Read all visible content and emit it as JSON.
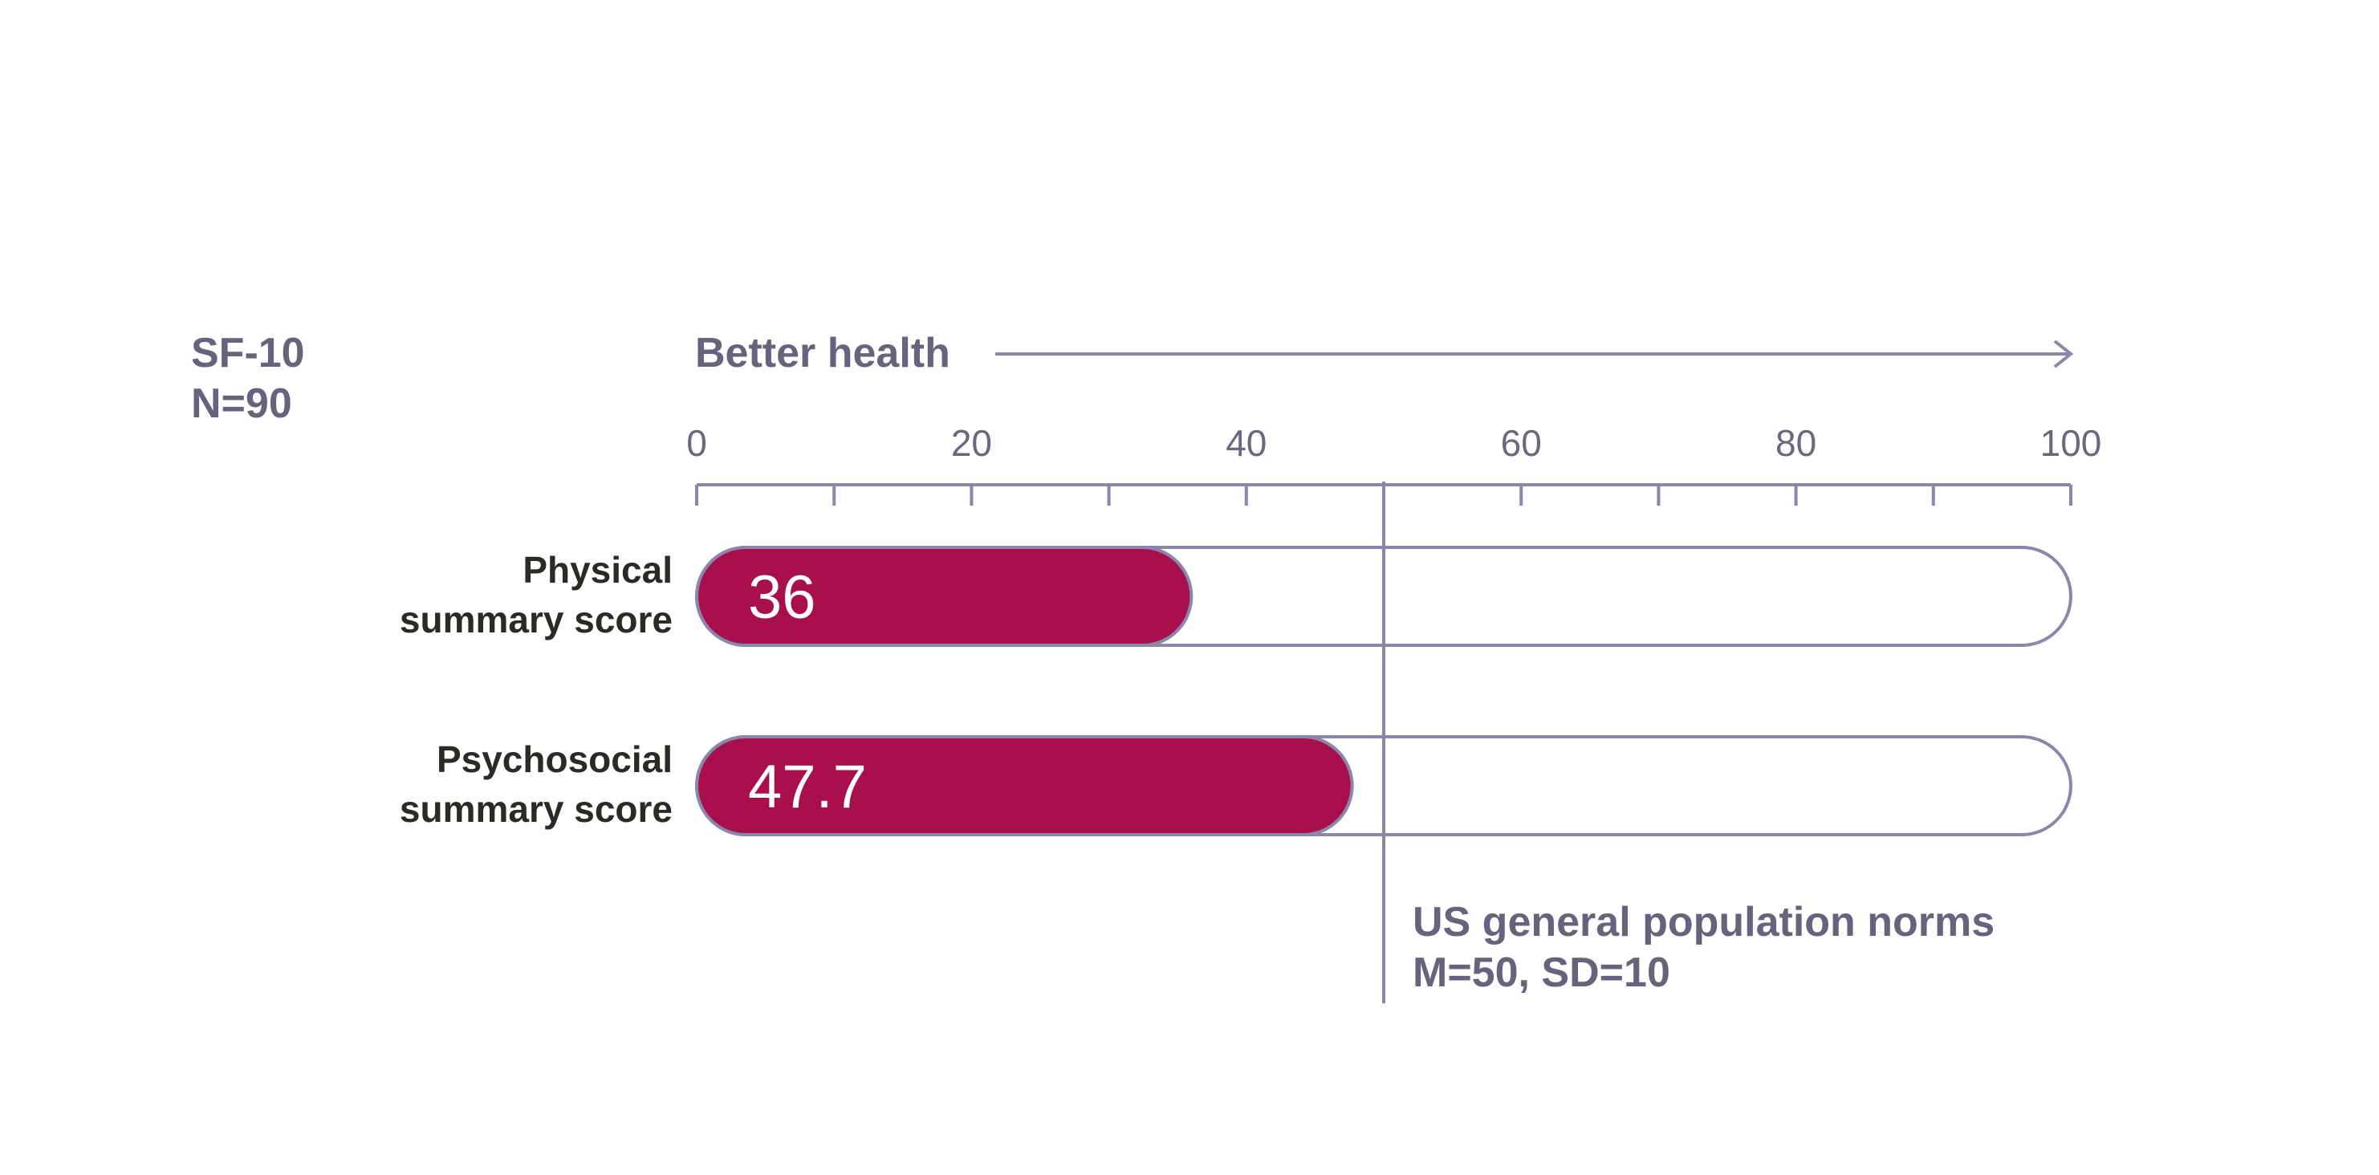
{
  "chart_data": {
    "type": "bar",
    "orientation": "horizontal",
    "panel_title": [
      "SF-10",
      "N=90"
    ],
    "axis_direction_label": "Better health",
    "xlim": [
      0,
      100
    ],
    "major_ticks": [
      0,
      20,
      40,
      60,
      80,
      100
    ],
    "minor_ticks": [
      10,
      30,
      50,
      70,
      90
    ],
    "categories": [
      [
        "Physical",
        "summary score"
      ],
      [
        "Psychosocial",
        "summary score"
      ]
    ],
    "values": [
      36,
      47.7
    ],
    "value_labels": [
      "36",
      "47.7"
    ],
    "reference_line": {
      "value": 50,
      "label": [
        "US general population norms",
        "M=50, SD=10"
      ]
    },
    "colors": {
      "bar_fill": "#a80f4b",
      "track_stroke": "#8a87ad",
      "axis": "#8a87ad",
      "grey_text": "#66637e",
      "dark_text": "#2b2b24"
    }
  }
}
